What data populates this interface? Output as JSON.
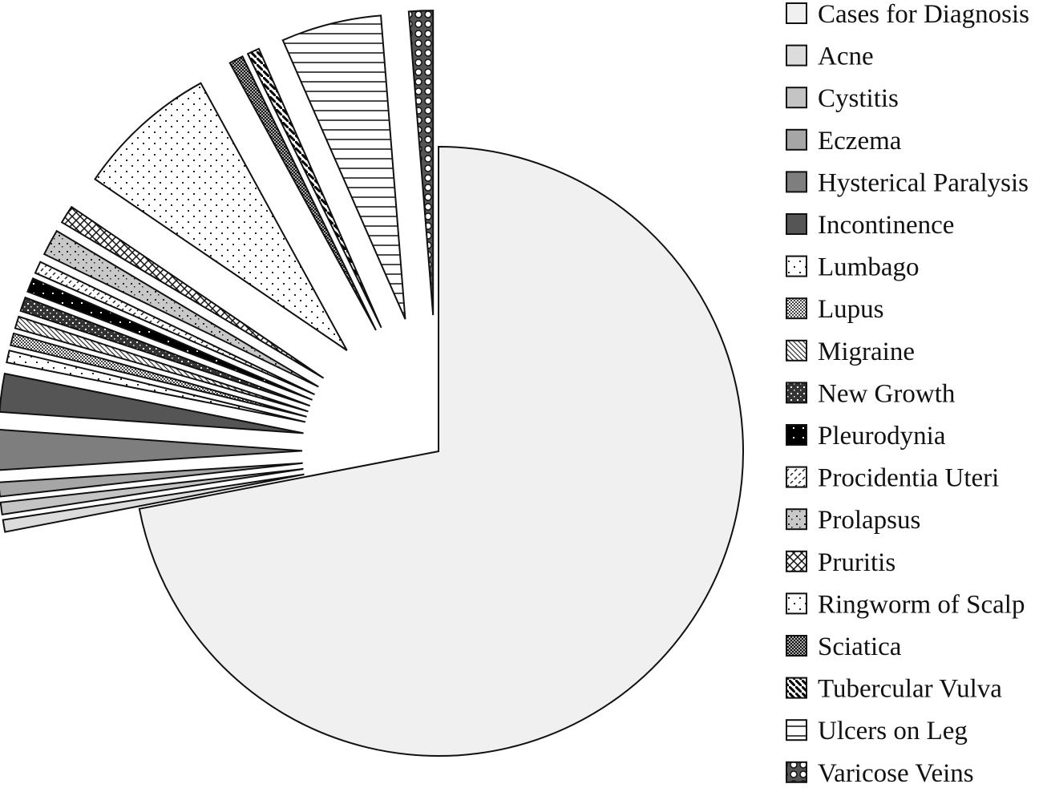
{
  "chart_data": {
    "type": "pie",
    "title": "",
    "legend_position": "right",
    "slices": [
      {
        "label": "Cases for Diagnosis",
        "value": 67.8,
        "color": "#f0f0f0",
        "pattern": "solid",
        "explode": false
      },
      {
        "label": "Acne",
        "value": 0.6,
        "color": "#dcdcdc",
        "pattern": "solid",
        "explode": true
      },
      {
        "label": "Cystitis",
        "value": 0.6,
        "color": "#c4c4c4",
        "pattern": "solid",
        "explode": true
      },
      {
        "label": "Eczema",
        "value": 0.7,
        "color": "#a6a6a6",
        "pattern": "solid",
        "explode": true
      },
      {
        "label": "Hysterical Paralysis",
        "value": 2.0,
        "color": "#7e7e7e",
        "pattern": "solid",
        "explode": true
      },
      {
        "label": "Incontinence",
        "value": 1.9,
        "color": "#555555",
        "pattern": "solid",
        "explode": true
      },
      {
        "label": "Lumbago",
        "value": 0.6,
        "color": "#ffffff",
        "pattern": "sparse-dots",
        "explode": true
      },
      {
        "label": "Lupus",
        "value": 0.6,
        "color": "#ffffff",
        "pattern": "checker",
        "explode": true
      },
      {
        "label": "Migraine",
        "value": 0.6,
        "color": "#ffffff",
        "pattern": "diagonal",
        "explode": true
      },
      {
        "label": "New Growth",
        "value": 0.7,
        "color": "#333333",
        "pattern": "dark-dots",
        "explode": true
      },
      {
        "label": "Pleurodynia",
        "value": 0.7,
        "color": "#000000",
        "pattern": "black-dots",
        "explode": true
      },
      {
        "label": "Procidentia Uteri",
        "value": 0.6,
        "color": "#ffffff",
        "pattern": "dash",
        "explode": true
      },
      {
        "label": "Prolapsus",
        "value": 1.3,
        "color": "#c8c8c8",
        "pattern": "gray-dots",
        "explode": true
      },
      {
        "label": "Pruritis",
        "value": 0.9,
        "color": "#ffffff",
        "pattern": "cross",
        "explode": true
      },
      {
        "label": "Ringworm of Scalp",
        "value": 7.1,
        "color": "#ffffff",
        "pattern": "sparse-dots",
        "explode": true
      },
      {
        "label": "Sciatica",
        "value": 0.7,
        "color": "#ffffff",
        "pattern": "checker-dark",
        "explode": true
      },
      {
        "label": "Tubercular Vulva",
        "value": 0.6,
        "color": "#ffffff",
        "pattern": "diag-dark",
        "explode": true
      },
      {
        "label": "Ulcers on Leg",
        "value": 5.0,
        "color": "#ffffff",
        "pattern": "horizontal",
        "explode": true
      },
      {
        "label": "Varicose Veins",
        "value": 1.2,
        "color": "#555555",
        "pattern": "circles",
        "explode": true
      }
    ]
  }
}
